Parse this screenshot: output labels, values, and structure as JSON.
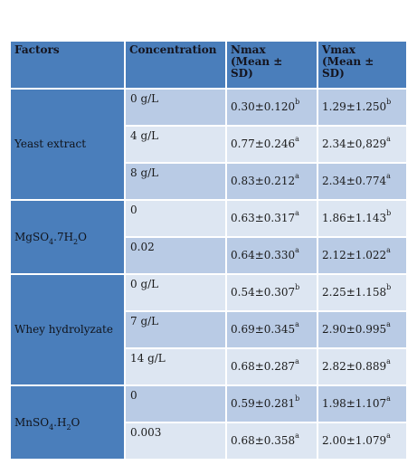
{
  "table": {
    "headers": [
      "Factors",
      "Concentration",
      "Nmax\n(Mean ±\nSD)",
      "Vmax\n(Mean ±\nSD)"
    ],
    "groups": [
      {
        "factor_parts": [
          "Yeast extract"
        ],
        "rows": [
          {
            "concentration": "0 g/L",
            "nmax": "0.30±0.120",
            "nmax_sup": "b",
            "vmax": "1.29±1.250",
            "vmax_sup": "b"
          },
          {
            "concentration": "4 g/L",
            "nmax": "0.77±0.246",
            "nmax_sup": "a",
            "vmax": "2.34±0,829",
            "vmax_sup": "a"
          },
          {
            "concentration": "8 g/L",
            "nmax": "0.83±0.212",
            "nmax_sup": "a",
            "vmax": "2.34±0.774",
            "vmax_sup": "a"
          }
        ]
      },
      {
        "factor_parts": [
          "MgSO",
          "4",
          ".7H",
          "2",
          "O"
        ],
        "rows": [
          {
            "concentration": "0",
            "nmax": "0.63±0.317",
            "nmax_sup": "a",
            "vmax": "1.86±1.143",
            "vmax_sup": "b"
          },
          {
            "concentration": "0.02",
            "nmax": "0.64±0.330",
            "nmax_sup": "a",
            "vmax": "2.12±1.022",
            "vmax_sup": "a"
          }
        ]
      },
      {
        "factor_parts": [
          "Whey hydrolyzate"
        ],
        "rows": [
          {
            "concentration": "0 g/L",
            "nmax": "0.54±0.307",
            "nmax_sup": "b",
            "vmax": "2.25±1.158",
            "vmax_sup": "b"
          },
          {
            "concentration": "7 g/L",
            "nmax": "0.69±0.345",
            "nmax_sup": "a",
            "vmax": "2.90±0.995",
            "vmax_sup": "a"
          },
          {
            "concentration": "14 g/L",
            "nmax": "0.68±0.287",
            "nmax_sup": "a",
            "vmax": "2.82±0.889",
            "vmax_sup": "a"
          }
        ]
      },
      {
        "factor_parts": [
          "MnSO",
          "4",
          ".H",
          "2",
          "O"
        ],
        "rows": [
          {
            "concentration": "0",
            "nmax": "0.59±0.281",
            "nmax_sup": "b",
            "vmax": "1.98±1.107",
            "vmax_sup": "a"
          },
          {
            "concentration": "0.003",
            "nmax": "0.68±0.358",
            "nmax_sup": "a",
            "vmax": "2.00±1.079",
            "vmax_sup": "a"
          }
        ]
      }
    ]
  }
}
